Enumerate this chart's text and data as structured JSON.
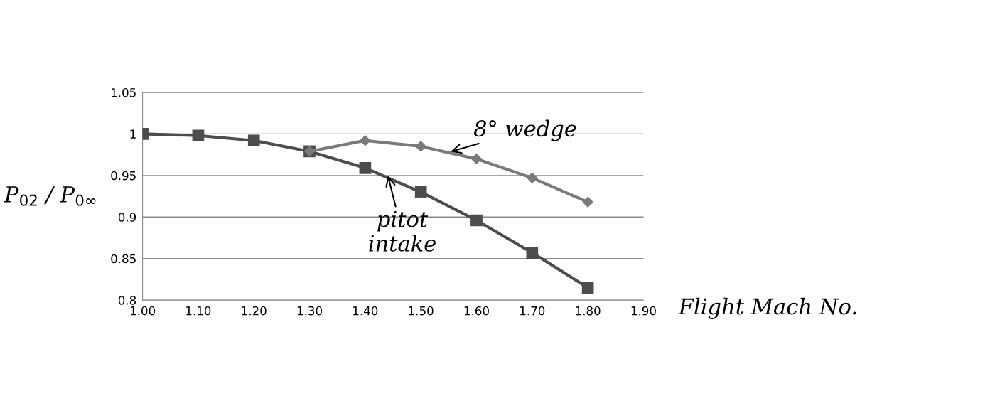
{
  "chart_data": {
    "type": "line",
    "ylabel": "P$_{02}$ / P$_{0∞}$",
    "xlabel": "Flight Mach No.",
    "x": [
      1.0,
      1.1,
      1.2,
      1.3,
      1.4,
      1.5,
      1.6,
      1.7,
      1.8
    ],
    "series": [
      {
        "color": "#4d4d4d",
        "marker": "square",
        "values": [
          1.0,
          0.998,
          0.992,
          0.979,
          0.959,
          0.93,
          0.896,
          0.857,
          0.815
        ]
      },
      {
        "color": "#7a7a7a",
        "marker": "diamond",
        "values": [
          null,
          null,
          null,
          0.979,
          0.992,
          0.985,
          0.97,
          0.947,
          0.918
        ]
      }
    ],
    "annotations": [
      {
        "text": "8° wedge",
        "x": 1.55,
        "y": 0.978
      },
      {
        "text": "pitot\nintake",
        "x": 1.44,
        "y": 0.952
      }
    ],
    "xlim": [
      1.0,
      1.9
    ],
    "ylim": [
      0.8,
      1.05
    ],
    "xticks": [
      {
        "value": 1.0,
        "label": "1.00"
      },
      {
        "value": 1.1,
        "label": "1.10"
      },
      {
        "value": 1.2,
        "label": "1.20"
      },
      {
        "value": 1.3,
        "label": "1.30"
      },
      {
        "value": 1.4,
        "label": "1.40"
      },
      {
        "value": 1.5,
        "label": "1.50"
      },
      {
        "value": 1.6,
        "label": "1.60"
      },
      {
        "value": 1.7,
        "label": "1.70"
      },
      {
        "value": 1.8,
        "label": "1.80"
      },
      {
        "value": 1.9,
        "label": "1.90"
      }
    ],
    "yticks": [
      0.8,
      0.85,
      0.9,
      0.95,
      1,
      1.05
    ],
    "grid": "y",
    "line_style": "solid"
  }
}
